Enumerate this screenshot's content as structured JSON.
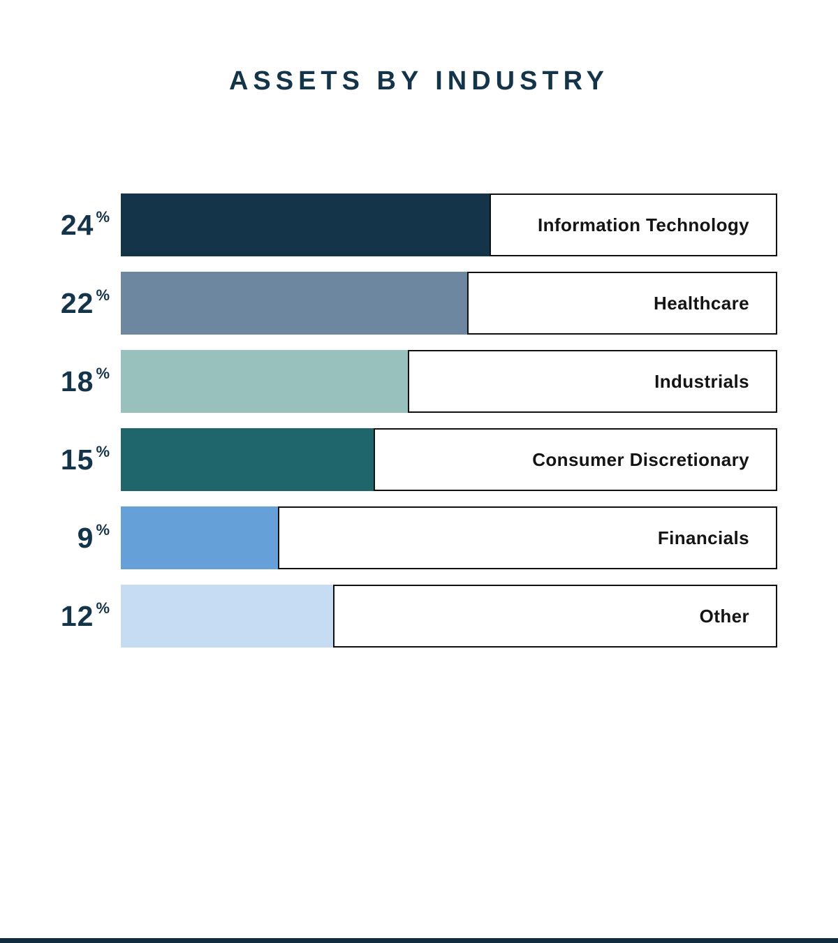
{
  "page": {
    "title": "ASSETS BY INDUSTRY"
  },
  "colors": {
    "accent_navy": "#14344a",
    "background": "#ffffff",
    "label_box_border": "#101010",
    "label_text": "#141414",
    "bottom_strip": "#112b3f"
  },
  "chart_data": {
    "type": "bar",
    "orientation": "horizontal",
    "title": "ASSETS BY INDUSTRY",
    "categories": [
      "Information Technology",
      "Healthcare",
      "Industrials",
      "Consumer Discretionary",
      "Financials",
      "Other"
    ],
    "values": [
      24,
      22,
      18,
      15,
      9,
      12
    ],
    "unit": "%",
    "value_labels": [
      "24%",
      "22%",
      "18%",
      "15%",
      "9%",
      "12%"
    ],
    "bar_colors": [
      "#14344a",
      "#6d87a1",
      "#98c1bd",
      "#1e666c",
      "#66a0d9",
      "#c5dcf2"
    ],
    "bar_track_fractions": [
      0.562,
      0.528,
      0.437,
      0.385,
      0.239,
      0.323
    ],
    "value_label_color": "#14344a",
    "grid": false,
    "legend_position": "none",
    "axis_labels": {
      "x": "",
      "y": ""
    }
  }
}
